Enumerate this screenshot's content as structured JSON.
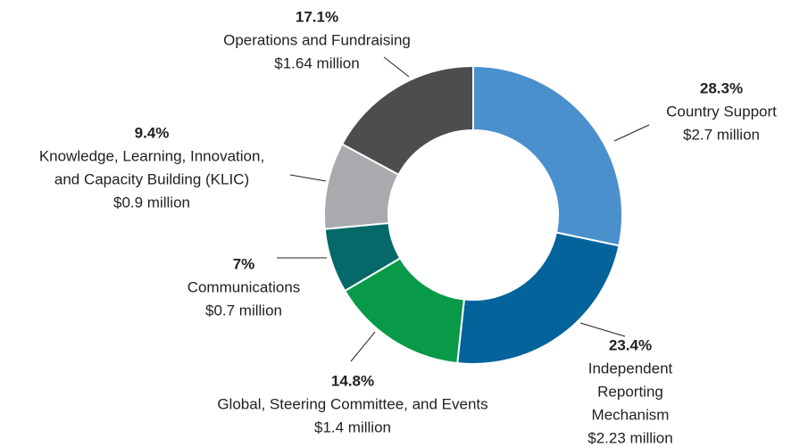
{
  "chart_data": {
    "type": "pie",
    "donut": true,
    "categories": [
      [
        "Country Support"
      ],
      [
        "Independent",
        "Reporting",
        "Mechanism"
      ],
      [
        "Global, Steering Committee, and Events"
      ],
      [
        "Communications"
      ],
      [
        "Knowledge, Learning, Innovation,",
        "and Capacity Building (KLIC)"
      ],
      [
        "Operations and Fundraising"
      ]
    ],
    "values": [
      28.3,
      23.4,
      14.8,
      7,
      9.4,
      17.1
    ],
    "value_labels": [
      "28.3%",
      "23.4%",
      "14.8%",
      "7%",
      "9.4%",
      "17.1%"
    ],
    "amounts": [
      "$2.7 million",
      "$2.23 million",
      "$1.4 million",
      "$0.7 million",
      "$0.9 million",
      "$1.64 million"
    ],
    "colors": [
      "#4a90cd",
      "#05639b",
      "#089a48",
      "#046968",
      "#a8aaad",
      "#4d4d4d"
    ]
  }
}
